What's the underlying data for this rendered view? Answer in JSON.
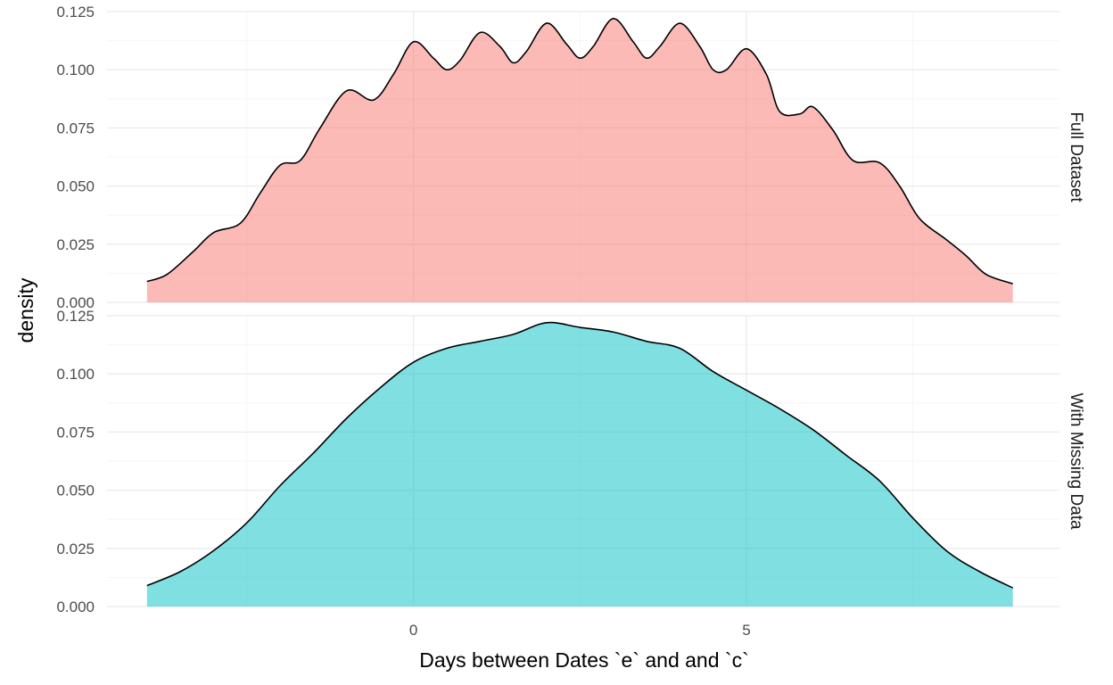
{
  "chart_data": {
    "type": "area",
    "xlabel": "Days between Dates `e` and and `c`",
    "ylabel": "density",
    "x_ticks": [
      0,
      5
    ],
    "y_ticks": [
      "0.000",
      "0.025",
      "0.050",
      "0.075",
      "0.100",
      "0.125"
    ],
    "xlim": [
      -4.6,
      9.7
    ],
    "ylim": [
      0,
      0.125
    ],
    "grid": true,
    "facets": [
      {
        "name": "Full Dataset",
        "color": "#F8766D",
        "x": [
          -4.0,
          -3.7,
          -3.3,
          -3.0,
          -2.6,
          -2.3,
          -2.0,
          -1.7,
          -1.4,
          -1.0,
          -0.6,
          -0.3,
          0.0,
          0.3,
          0.5,
          0.7,
          1.0,
          1.3,
          1.5,
          1.7,
          2.0,
          2.3,
          2.5,
          2.7,
          3.0,
          3.3,
          3.5,
          3.7,
          4.0,
          4.3,
          4.5,
          4.7,
          5.0,
          5.3,
          5.5,
          5.8,
          6.0,
          6.3,
          6.6,
          7.0,
          7.3,
          7.6,
          8.0,
          8.3,
          8.6,
          9.0
        ],
        "y": [
          0.009,
          0.012,
          0.022,
          0.03,
          0.034,
          0.047,
          0.059,
          0.061,
          0.075,
          0.091,
          0.087,
          0.098,
          0.112,
          0.105,
          0.1,
          0.104,
          0.116,
          0.11,
          0.103,
          0.108,
          0.12,
          0.111,
          0.105,
          0.11,
          0.122,
          0.112,
          0.105,
          0.11,
          0.12,
          0.11,
          0.1,
          0.1,
          0.109,
          0.098,
          0.082,
          0.081,
          0.084,
          0.074,
          0.061,
          0.06,
          0.05,
          0.036,
          0.027,
          0.02,
          0.012,
          0.008
        ]
      },
      {
        "name": "With Missing Data",
        "color": "#00BFC4",
        "x": [
          -4.0,
          -3.5,
          -3.0,
          -2.5,
          -2.0,
          -1.5,
          -1.0,
          -0.5,
          0.0,
          0.5,
          1.0,
          1.5,
          2.0,
          2.5,
          3.0,
          3.5,
          4.0,
          4.5,
          5.0,
          5.5,
          6.0,
          6.5,
          7.0,
          7.5,
          8.0,
          8.5,
          9.0
        ],
        "y": [
          0.009,
          0.015,
          0.024,
          0.036,
          0.052,
          0.066,
          0.081,
          0.094,
          0.105,
          0.111,
          0.114,
          0.117,
          0.122,
          0.12,
          0.118,
          0.114,
          0.111,
          0.101,
          0.093,
          0.085,
          0.076,
          0.065,
          0.054,
          0.038,
          0.024,
          0.015,
          0.008
        ]
      }
    ]
  }
}
